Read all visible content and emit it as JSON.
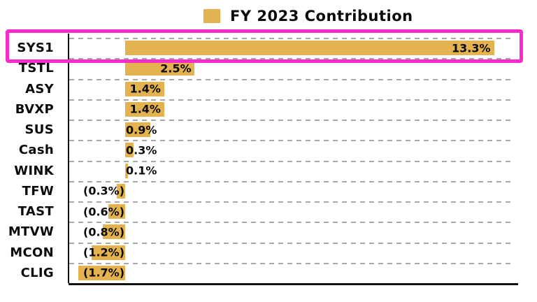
{
  "legend": {
    "label": "FY 2023 Contribution",
    "swatch_color": "#e4b24e"
  },
  "chart_data": {
    "type": "bar",
    "orientation": "horizontal",
    "title": "FY 2023 Contribution",
    "categories": [
      "SYS1",
      "TSTL",
      "ASY",
      "BVXP",
      "SUS",
      "Cash",
      "WINK",
      "TFW",
      "TAST",
      "MTVW",
      "MCON",
      "CLIG"
    ],
    "values": [
      13.3,
      2.5,
      1.4,
      1.4,
      0.9,
      0.3,
      0.1,
      -0.3,
      -0.6,
      -0.8,
      -1.2,
      -1.7
    ],
    "value_labels": [
      "13.3%",
      "2.5%",
      "1.4%",
      "1.4%",
      "0.9%",
      "0.3%",
      "0.1%",
      "(0.3%)",
      "(0.6%)",
      "(0.8%)",
      "(1.2%)",
      "(1.7%)"
    ],
    "xlim": [
      -2.0,
      14.1
    ],
    "grid": "horizontal-dashed",
    "legend_position": "top",
    "bar_color": "#e4b24e",
    "gridline_color": "#a8a8a8",
    "axis_color": "#111111",
    "highlighted_category": "SYS1",
    "highlight_color": "#fb2bcb"
  }
}
